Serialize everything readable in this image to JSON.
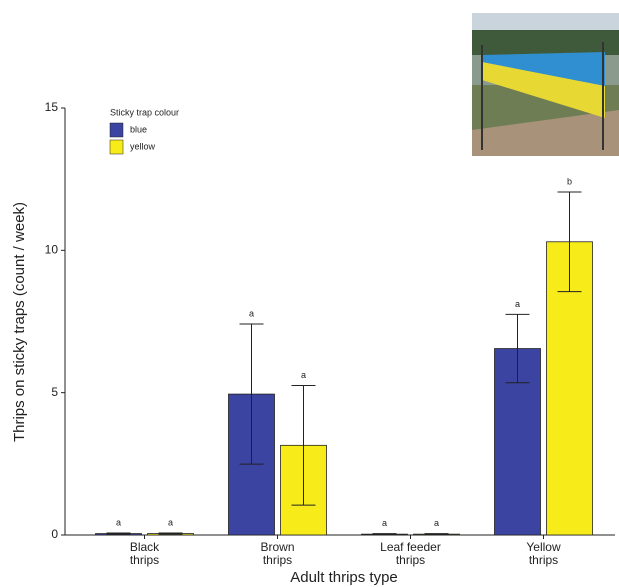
{
  "chart_data": {
    "type": "bar",
    "y_label": "Thrips on sticky traps (count / week)",
    "x_label": "Adult thrips type",
    "legend_title": "Sticky trap colour",
    "categories": [
      "Black thrips",
      "Brown thrips",
      "Leaf feeder thrips",
      "Yellow thrips"
    ],
    "series": [
      {
        "name": "blue",
        "color": "#3b44a0",
        "values": [
          0.05,
          4.95,
          0.03,
          6.55
        ],
        "errors": [
          0.02,
          2.46,
          0.02,
          1.2
        ],
        "labels": [
          "a",
          "a",
          "a",
          "a"
        ]
      },
      {
        "name": "yellow",
        "color": "#f7eb1a",
        "values": [
          0.05,
          3.15,
          0.03,
          10.3
        ],
        "errors": [
          0.02,
          2.1,
          0.02,
          1.75
        ],
        "labels": [
          "a",
          "a",
          "a",
          "b"
        ]
      }
    ],
    "ylim": [
      0,
      15
    ],
    "yticks": [
      0,
      5,
      10,
      15
    ],
    "legend": "upper-left"
  }
}
